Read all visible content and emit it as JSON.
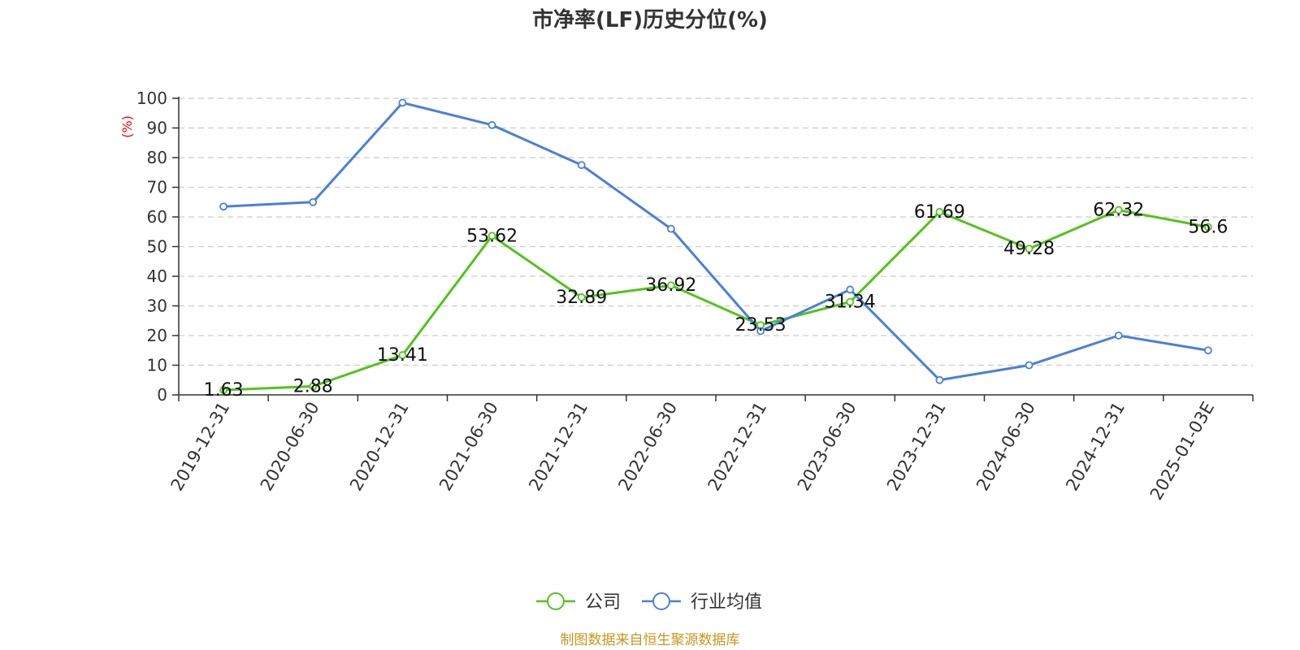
{
  "chart_data": {
    "type": "line",
    "title": "市净率(LF)历史分位(%)",
    "ylabel": "(%)",
    "ylim": [
      0,
      100
    ],
    "yticks": [
      0,
      10,
      20,
      30,
      40,
      50,
      60,
      70,
      80,
      90,
      100
    ],
    "grid": true,
    "legend_position": "bottom",
    "categories": [
      "2019-12-31",
      "2020-06-30",
      "2020-12-31",
      "2021-06-30",
      "2021-12-31",
      "2022-06-30",
      "2022-12-31",
      "2023-06-30",
      "2023-12-31",
      "2024-06-30",
      "2024-12-31",
      "2025-01-03E"
    ],
    "series": [
      {
        "name": "公司",
        "color": "#52c41a",
        "values": [
          1.63,
          2.88,
          13.41,
          53.62,
          32.89,
          36.92,
          23.53,
          31.34,
          61.69,
          49.28,
          62.32,
          56.6
        ],
        "data_labels": [
          "1.63",
          "2.88",
          "13.41",
          "53.62",
          "32.89",
          "36.92",
          "23.53",
          "31.34",
          "61.69",
          "49.28",
          "62.32",
          "56.6"
        ]
      },
      {
        "name": "行业均值",
        "color": "#4a7fdc",
        "values": [
          63.5,
          65.0,
          98.5,
          91.0,
          77.5,
          56.0,
          21.5,
          35.5,
          5.0,
          10.0,
          20.0,
          15.0
        ]
      }
    ],
    "source": "制图数据来自恒生聚源数据库"
  }
}
